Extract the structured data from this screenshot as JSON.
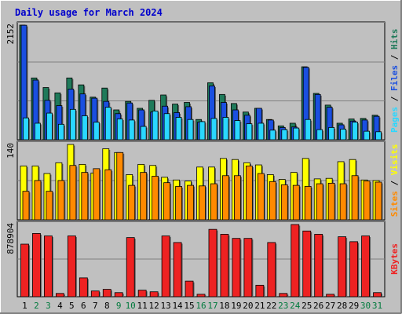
{
  "title": "Daily usage for March 2024",
  "colors": {
    "background": "#c0c0c0",
    "panel": "#c0c0c0",
    "title": "#0000cc",
    "hits": "#1f7a5a",
    "files": "#1a4fe0",
    "pages": "#2ad7ff",
    "visits": "#ffff00",
    "sites": "#ff8a00",
    "kbytes": "#ee2222"
  },
  "chart_data": [
    {
      "type": "bar",
      "name": "hits-files-pages",
      "series": [
        {
          "name": "Hits",
          "values": [
            2152,
            1160,
            980,
            880,
            1160,
            1030,
            800,
            970,
            560,
            720,
            590,
            740,
            840,
            670,
            700,
            380,
            1070,
            850,
            680,
            520,
            590,
            380,
            260,
            310,
            1370,
            870,
            650,
            310,
            390,
            400,
            460
          ]
        },
        {
          "name": "Files",
          "values": [
            2150,
            1120,
            740,
            640,
            950,
            860,
            780,
            720,
            490,
            690,
            560,
            520,
            630,
            510,
            620,
            330,
            1010,
            700,
            560,
            460,
            590,
            370,
            230,
            240,
            1360,
            850,
            610,
            280,
            350,
            370,
            440
          ]
        },
        {
          "name": "Pages",
          "values": [
            410,
            310,
            500,
            290,
            570,
            450,
            330,
            610,
            390,
            370,
            250,
            540,
            490,
            420,
            380,
            340,
            400,
            420,
            360,
            300,
            310,
            180,
            190,
            220,
            380,
            190,
            230,
            200,
            330,
            160,
            150
          ]
        }
      ],
      "categories": [
        "1",
        "2",
        "3",
        "4",
        "5",
        "6",
        "7",
        "8",
        "9",
        "10",
        "11",
        "12",
        "13",
        "14",
        "15",
        "16",
        "17",
        "18",
        "19",
        "20",
        "21",
        "22",
        "23",
        "24",
        "25",
        "26",
        "27",
        "28",
        "29",
        "30",
        "31"
      ],
      "ylabel": "2152",
      "right_label": [
        "Pages",
        "Files",
        "Hits"
      ],
      "ymax": 2152
    },
    {
      "type": "bar",
      "name": "visits-sites",
      "series": [
        {
          "name": "Visits",
          "values": [
            100,
            100,
            86,
            106,
            140,
            103,
            87,
            132,
            125,
            84,
            103,
            101,
            79,
            74,
            72,
            98,
            98,
            114,
            112,
            106,
            102,
            84,
            75,
            88,
            114,
            76,
            77,
            108,
            112,
            74,
            73
          ]
        },
        {
          "name": "Sites",
          "values": [
            53,
            73,
            53,
            73,
            101,
            88,
            95,
            93,
            125,
            64,
            88,
            81,
            69,
            62,
            64,
            63,
            67,
            82,
            82,
            100,
            86,
            71,
            65,
            64,
            62,
            67,
            68,
            67,
            82,
            72,
            70
          ]
        }
      ],
      "ylabel": "140",
      "right_label": [
        "Sites",
        "Visits"
      ],
      "ymax": 140
    },
    {
      "type": "bar",
      "name": "kbytes",
      "series": [
        {
          "name": "KBytes",
          "values": [
            640000,
            770000,
            740000,
            40000,
            740000,
            230000,
            70000,
            90000,
            50000,
            720000,
            80000,
            60000,
            740000,
            660000,
            190000,
            30000,
            820000,
            760000,
            710000,
            710000,
            140000,
            660000,
            40000,
            878904,
            800000,
            760000,
            30000,
            730000,
            670000,
            740000,
            50000
          ]
        }
      ],
      "ylabel": "878904",
      "right_label": [
        "KBytes"
      ],
      "ymax": 878904
    }
  ],
  "xaxis": {
    "labels": [
      "1",
      "2",
      "3",
      "4",
      "5",
      "6",
      "7",
      "8",
      "9",
      "10",
      "11",
      "12",
      "13",
      "14",
      "15",
      "16",
      "17",
      "18",
      "19",
      "20",
      "21",
      "22",
      "23",
      "24",
      "25",
      "26",
      "27",
      "28",
      "29",
      "30",
      "31"
    ],
    "weekend_days": [
      2,
      3,
      9,
      10,
      16,
      17,
      23,
      24,
      30,
      31
    ]
  }
}
